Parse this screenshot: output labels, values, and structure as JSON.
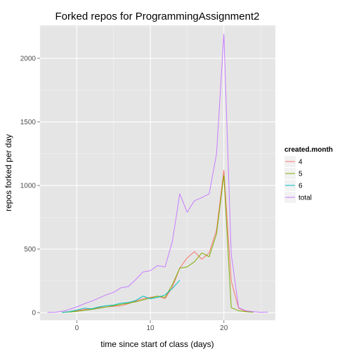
{
  "chart_data": {
    "type": "line",
    "title": "Forked repos for ProgrammingAssignment2",
    "xlabel": "time since start of class (days)",
    "ylabel": "repos forked per day",
    "xlim": [
      -5,
      27
    ],
    "ylim": [
      -60,
      2260
    ],
    "xticks": [
      0,
      10,
      20
    ],
    "yticks": [
      0,
      500,
      1000,
      1500,
      2000
    ],
    "xtick_labels": [
      "0",
      "10",
      "20"
    ],
    "ytick_labels": [
      "0",
      "500",
      "1000",
      "1500",
      "2000"
    ],
    "grid": true,
    "panel_background": "#e5e5e5",
    "legend": {
      "title": "created.month",
      "position": "right"
    },
    "series": [
      {
        "name": "4",
        "color": "#f8766d",
        "x": [
          -2,
          -1,
          0,
          1,
          2,
          3,
          4,
          5,
          6,
          7,
          8,
          9,
          10,
          11,
          12,
          13,
          14,
          15,
          16,
          17,
          18,
          19,
          20,
          21,
          22,
          23,
          24
        ],
        "y": [
          3,
          8,
          15,
          25,
          30,
          40,
          45,
          50,
          55,
          70,
          90,
          110,
          120,
          130,
          110,
          200,
          350,
          430,
          480,
          420,
          470,
          650,
          1120,
          250,
          35,
          10,
          5
        ]
      },
      {
        "name": "5",
        "color": "#7cae00",
        "x": [
          -2,
          -1,
          0,
          1,
          2,
          3,
          4,
          5,
          6,
          7,
          8,
          9,
          10,
          11,
          12,
          13,
          14,
          15,
          16,
          17,
          18,
          19,
          20,
          21,
          22,
          23,
          24
        ],
        "y": [
          2,
          5,
          10,
          18,
          25,
          35,
          45,
          55,
          65,
          75,
          85,
          100,
          115,
          130,
          120,
          220,
          350,
          360,
          400,
          470,
          440,
          620,
          1080,
          40,
          15,
          8,
          3
        ]
      },
      {
        "name": "6",
        "color": "#00bfc4",
        "x": [
          -2,
          -1,
          0,
          1,
          2,
          3,
          4,
          5,
          6,
          7,
          8,
          9,
          10,
          11,
          12,
          13,
          14
        ],
        "y": [
          2,
          8,
          20,
          35,
          30,
          45,
          55,
          60,
          75,
          80,
          95,
          130,
          110,
          120,
          140,
          190,
          255
        ]
      },
      {
        "name": "total",
        "color": "#c77cff",
        "x": [
          -4,
          -3,
          -2,
          -1,
          0,
          1,
          2,
          3,
          4,
          5,
          6,
          7,
          8,
          9,
          10,
          11,
          12,
          13,
          14,
          15,
          16,
          17,
          18,
          19,
          20,
          21,
          22,
          23,
          24,
          25,
          26
        ],
        "y": [
          2,
          3,
          10,
          25,
          45,
          70,
          90,
          115,
          140,
          160,
          195,
          205,
          260,
          320,
          330,
          370,
          360,
          560,
          935,
          790,
          880,
          905,
          935,
          1250,
          2190,
          460,
          40,
          15,
          8,
          3,
          5
        ]
      }
    ]
  }
}
